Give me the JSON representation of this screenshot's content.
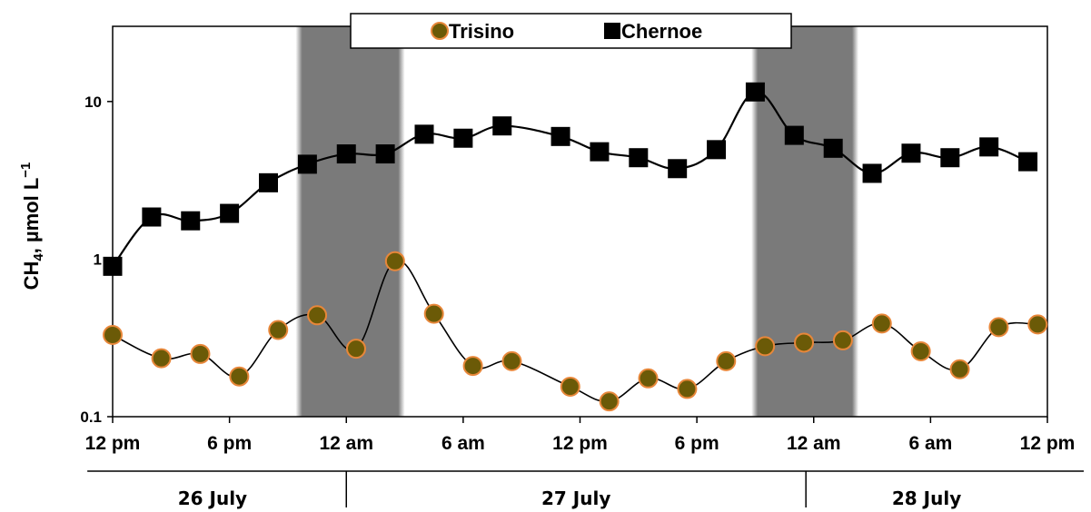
{
  "chart_data": {
    "type": "line",
    "ylabel_main": "CH",
    "ylabel_sub": "4",
    "ylabel_rest": ", µmol L",
    "ylabel_sup": "−1",
    "y_scale": "log",
    "ylim": [
      0.1,
      30
    ],
    "y_ticks": [
      {
        "value": 0.1,
        "label": "0.1"
      },
      {
        "value": 1,
        "label": "1"
      },
      {
        "value": 10,
        "label": "10"
      }
    ],
    "x_unit": "hours",
    "xlim": [
      0,
      48
    ],
    "x_ticks": [
      {
        "value": 0,
        "label": "12 pm"
      },
      {
        "value": 6,
        "label": "6 pm"
      },
      {
        "value": 12,
        "label": "12 am"
      },
      {
        "value": 18,
        "label": "6 am"
      },
      {
        "value": 24,
        "label": "12 pm"
      },
      {
        "value": 30,
        "label": "6 pm"
      },
      {
        "value": 36,
        "label": "12 am"
      },
      {
        "value": 42,
        "label": "6 am"
      },
      {
        "value": 48,
        "label": "12 pm"
      }
    ],
    "dates": [
      {
        "label": "26 July",
        "start": -1.3,
        "end": 12
      },
      {
        "label": "27 July",
        "start": 12,
        "end": 35.6
      },
      {
        "label": "28 July",
        "start": 35.6,
        "end": 48
      }
    ],
    "night_bands": [
      [
        9.4,
        15
      ],
      [
        32.8,
        38.3
      ]
    ],
    "legend_position": "top-center",
    "grid": false,
    "series": [
      {
        "name": "Trisino",
        "marker": "circle",
        "fill_color": "#6b5a07",
        "edge_color": "#e8873a",
        "x": [
          0,
          2.5,
          4.5,
          6.5,
          8.5,
          10.5,
          12.5,
          14.5,
          16.5,
          18.5,
          20.5,
          23.5,
          25.5,
          27.5,
          29.5,
          31.5,
          33.5,
          35.5,
          37.5,
          39.5,
          41.5,
          43.5,
          45.5,
          47.5
        ],
        "values": [
          0.33,
          0.235,
          0.25,
          0.18,
          0.355,
          0.44,
          0.27,
          0.97,
          0.45,
          0.21,
          0.225,
          0.155,
          0.125,
          0.175,
          0.15,
          0.225,
          0.28,
          0.295,
          0.305,
          0.39,
          0.26,
          0.2,
          0.37,
          0.385
        ]
      },
      {
        "name": "Chernoe",
        "marker": "square",
        "fill_color": "#000000",
        "edge_color": "#000000",
        "x": [
          0,
          2,
          4,
          6,
          8,
          10,
          12,
          14,
          16,
          18,
          20,
          23,
          25,
          27,
          29,
          31,
          33,
          35,
          37,
          39,
          41,
          43,
          45,
          47
        ],
        "values": [
          0.9,
          1.85,
          1.75,
          1.95,
          3.05,
          4.0,
          4.65,
          4.65,
          6.2,
          5.85,
          7.0,
          6.0,
          4.8,
          4.4,
          3.75,
          4.95,
          11.5,
          6.1,
          5.05,
          3.5,
          4.7,
          4.4,
          5.15,
          4.15
        ]
      }
    ]
  }
}
